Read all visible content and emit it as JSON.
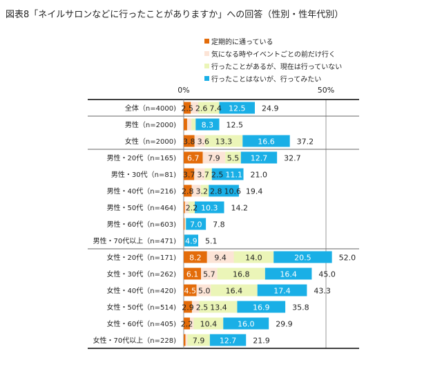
{
  "title": "図表8「ネイルサロンなどに行ったことがありますか」への回答（性別・性年代別）",
  "chart_data": {
    "type": "bar",
    "orientation": "horizontal",
    "stacked": true,
    "xlim": [
      0,
      50
    ],
    "x_ticks": [
      "0%",
      "50%"
    ],
    "legend_position": "top-right",
    "categories": [
      "全体（n=4000)",
      "男性（n=2000)",
      "女性（n=2000)",
      "男性・20代（n=165)",
      "男性・30代（n=81)",
      "男性・40代（n=216)",
      "男性・50代（n=464)",
      "男性・60代（n=603)",
      "男性・70代以上（n=471)",
      "女性・20代（n=171)",
      "女性・30代（n=262)",
      "女性・40代（n=420)",
      "女性・50代（n=514)",
      "女性・60代（n=405)",
      "女性・70代以上（n=228)"
    ],
    "groups_end_after": [
      0,
      2,
      8,
      14
    ],
    "series": [
      {
        "name": "定期的に通っている",
        "color": "#E36C0A",
        "values": [
          2.5,
          1.2,
          3.8,
          6.7,
          3.7,
          2.8,
          0.4,
          0.3,
          0.1,
          8.2,
          6.1,
          4.5,
          2.9,
          2.2,
          0.6
        ],
        "labels": [
          "2.5",
          null,
          "3.8",
          "6.7",
          "3.7",
          "2.8",
          null,
          null,
          null,
          "8.2",
          "6.1",
          "4.5",
          "2.9",
          "2.2",
          null
        ]
      },
      {
        "name": "気になる時やイベントごとの前だけ行く",
        "color": "#FCE4D6",
        "values": [
          2.6,
          1.5,
          3.6,
          7.9,
          3.7,
          3.2,
          1.3,
          0.3,
          0.05,
          9.4,
          5.7,
          5.0,
          2.5,
          1.3,
          0.7
        ],
        "labels": [
          "2.6",
          null,
          "3.6",
          "7.9",
          "3.7",
          "3.2",
          null,
          null,
          null,
          "9.4",
          "5.7",
          "5.0",
          "2.5",
          null,
          null
        ]
      },
      {
        "name": "行ったことがあるが、現在は行っていない",
        "color": "#EBF5B8",
        "values": [
          7.4,
          1.5,
          13.3,
          5.5,
          2.5,
          2.8,
          2.2,
          0.2,
          0.05,
          14.0,
          16.8,
          16.4,
          13.4,
          10.4,
          7.9
        ],
        "labels": [
          "7.4",
          null,
          "13.3",
          "5.5",
          "2.5",
          "2.8",
          "2.2",
          null,
          null,
          "14.0",
          "16.8",
          "16.4",
          "13.4",
          "10.4",
          "7.9"
        ]
      },
      {
        "name": "行ったことはないが、行ってみたい",
        "color": "#1AAFE6",
        "values": [
          12.5,
          8.3,
          16.6,
          12.7,
          11.1,
          10.6,
          10.3,
          7.0,
          4.9,
          20.5,
          16.4,
          17.4,
          16.9,
          16.0,
          12.7
        ],
        "labels": [
          "12.5",
          "8.3",
          "16.6",
          "12.7",
          "11.1",
          "10.6",
          "10.3",
          "7.0",
          "4.9",
          "20.5",
          "16.4",
          "17.4",
          "16.9",
          "16.0",
          "12.7"
        ]
      }
    ],
    "totals": [
      "24.9",
      "12.5",
      "37.2",
      "32.7",
      "21.0",
      "19.4",
      "14.2",
      "7.8",
      "5.1",
      "52.0",
      "45.0",
      "43.3",
      "35.8",
      "29.9",
      "21.9"
    ]
  }
}
